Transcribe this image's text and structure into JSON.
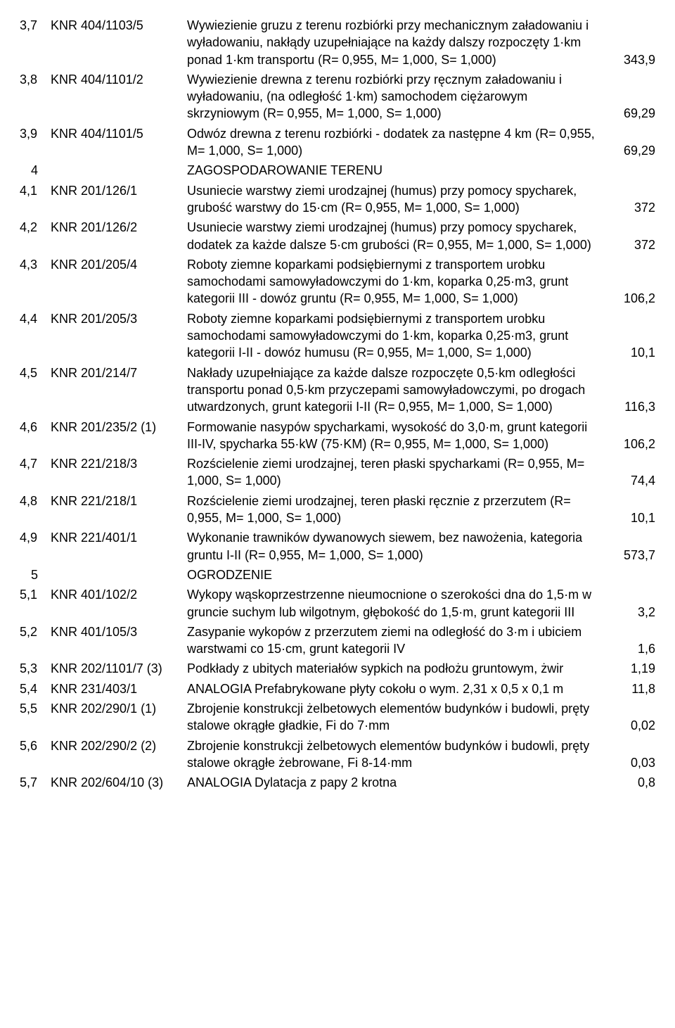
{
  "rows": [
    {
      "idx": "3,7",
      "code": "KNR 404/1103/5",
      "desc": "Wywiezienie gruzu z terenu rozbiórki przy mechanicznym załadowaniu i wyładowaniu, nakłądy uzupełniające na każdy dalszy rozpoczęty 1·km ponad 1·km transportu   (R= 0,955, M= 1,000, S= 1,000)",
      "val": "343,9"
    },
    {
      "idx": "3,8",
      "code": "KNR 404/1101/2",
      "desc": "Wywiezienie drewna z terenu rozbiórki przy ręcznym załadowaniu i wyładowaniu, (na odległość 1·km) samochodem ciężarowym skrzyniowym    (R= 0,955, M= 1,000, S= 1,000)",
      "val": "69,29"
    },
    {
      "idx": "3,9",
      "code": "KNR 404/1101/5",
      "desc": "Odwóz drewna z terenu rozbiórki - dodatek za następne 4 km    (R= 0,955, M= 1,000, S= 1,000)",
      "val": "69,29"
    },
    {
      "idx": "4",
      "code": "",
      "desc": "ZAGOSPODAROWANIE TERENU",
      "val": "",
      "section": true
    },
    {
      "idx": "4,1",
      "code": "KNR 201/126/1",
      "desc": "Usuniecie warstwy ziemi urodzajnej (humus) przy pomocy spycharek, grubość warstwy do 15·cm   (R= 0,955, M= 1,000, S= 1,000)",
      "val": "372"
    },
    {
      "idx": "4,2",
      "code": "KNR 201/126/2",
      "desc": "Usuniecie warstwy ziemi urodzajnej (humus) przy pomocy spycharek, dodatek za każde dalsze 5·cm grubości   (R= 0,955, M= 1,000, S= 1,000)",
      "val": "372"
    },
    {
      "idx": "4,3",
      "code": "KNR 201/205/4",
      "desc": "Roboty ziemne koparkami podsiębiernymi z transportem urobku samochodami samowyładowczymi do 1·km, koparka 0,25·m3, grunt kategorii III - dowóz gruntu   (R= 0,955, M= 1,000, S= 1,000)",
      "val": "106,2"
    },
    {
      "idx": "4,4",
      "code": "KNR 201/205/3",
      "desc": "Roboty ziemne koparkami podsiębiernymi z transportem urobku samochodami samowyładowczymi do 1·km, koparka 0,25·m3, grunt kategorii I-II - dowóz humusu   (R= 0,955, M= 1,000, S= 1,000)",
      "val": "10,1"
    },
    {
      "idx": "4,5",
      "code": "KNR 201/214/7",
      "desc": "Nakłady uzupełniające za każde dalsze rozpoczęte 0,5·km odległości transportu ponad 0,5·km przyczepami samowyładowczymi, po drogach utwardzonych, grunt kategorii I-II   (R= 0,955, M= 1,000, S= 1,000)",
      "val": "116,3"
    },
    {
      "idx": "4,6",
      "code": "KNR 201/235/2 (1)",
      "desc": "Formowanie nasypów spycharkami, wysokość do 3,0·m, grunt kategorii III-IV, spycharka 55·kW (75·KM)   (R= 0,955, M= 1,000, S= 1,000)",
      "val": "106,2"
    },
    {
      "idx": "4,7",
      "code": "KNR 221/218/3",
      "desc": "Rozścielenie ziemi urodzajnej, teren płaski spycharkami   (R= 0,955, M= 1,000, S= 1,000)",
      "val": "74,4"
    },
    {
      "idx": "4,8",
      "code": "KNR 221/218/1",
      "desc": "Rozścielenie ziemi urodzajnej, teren płaski ręcznie z przerzutem   (R= 0,955, M= 1,000, S= 1,000)",
      "val": "10,1"
    },
    {
      "idx": "4,9",
      "code": "KNR 221/401/1",
      "desc": "Wykonanie trawników dywanowych siewem, bez nawożenia, kategoria gruntu I-II   (R= 0,955, M= 1,000, S= 1,000)",
      "val": "573,7"
    },
    {
      "idx": "5",
      "code": "",
      "desc": "OGRODZENIE",
      "val": "",
      "section": true
    },
    {
      "idx": "5,1",
      "code": "KNR 401/102/2",
      "desc": "Wykopy wąskoprzestrzenne nieumocnione o szerokości dna do 1,5·m w gruncie suchym lub wilgotnym, głębokość do 1,5·m, grunt kategorii III",
      "val": "3,2"
    },
    {
      "idx": "5,2",
      "code": "KNR 401/105/3",
      "desc": "Zasypanie wykopów z przerzutem ziemi na odległość do 3·m i ubiciem warstwami co 15·cm, grunt kategorii IV",
      "val": "1,6"
    },
    {
      "idx": "5,3",
      "code": "KNR 202/1101/7 (3)",
      "desc": "Podkłady z ubitych materiałów sypkich na podłożu gruntowym, żwir",
      "val": "1,19"
    },
    {
      "idx": "5,4",
      "code": "KNR 231/403/1",
      "desc": "ANALOGIA    Prefabrykowane płyty cokołu o wym. 2,31 x 0,5 x 0,1 m",
      "val": "11,8"
    },
    {
      "idx": "5,5",
      "code": "KNR 202/290/1 (1)",
      "desc": "Zbrojenie konstrukcji żelbetowych elementów budynków i budowli, pręty stalowe okrągłe gładkie, Fi do 7·mm",
      "val": "0,02"
    },
    {
      "idx": "5,6",
      "code": "KNR 202/290/2 (2)",
      "desc": "Zbrojenie konstrukcji żelbetowych elementów budynków i budowli, pręty stalowe okrągłe żebrowane, Fi 8-14·mm",
      "val": "0,03"
    },
    {
      "idx": "5,7",
      "code": "KNR 202/604/10 (3)",
      "desc": "ANALOGIA   Dylatacja z papy 2 krotna",
      "val": "0,8"
    }
  ]
}
